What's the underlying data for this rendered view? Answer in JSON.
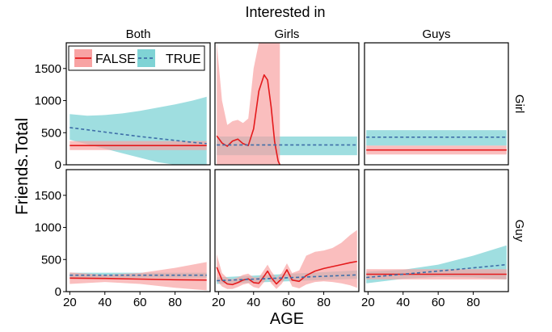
{
  "chart_data": {
    "type": "line",
    "title": "Interested in",
    "xlabel": "AGE",
    "ylabel": "Friends.Total",
    "col_facets": [
      "Both",
      "Girls",
      "Guys"
    ],
    "row_facets": [
      "Girl",
      "Guy"
    ],
    "xlim": [
      18,
      100
    ],
    "ylim": [
      0,
      1900
    ],
    "x_ticks": [
      20,
      40,
      60,
      80
    ],
    "y_ticks": [
      0,
      500,
      1000,
      1500
    ],
    "legend": {
      "placement": "top-left",
      "entries": [
        {
          "label": "FALSE",
          "color": "#E41A1C",
          "fill": "#F8A3A3",
          "dash": "solid"
        },
        {
          "label": "TRUE",
          "color": "#3E6EA8",
          "fill": "#7FD3D5",
          "dash": "dashed"
        }
      ]
    },
    "colors": {
      "false_line": "#E41A1C",
      "false_band": "#F8A3A3",
      "true_line": "#3E6EA8",
      "true_band": "#7FD3D5"
    },
    "panels": [
      {
        "row": "Girl",
        "col": "Both",
        "series": [
          {
            "name": "FALSE",
            "x": [
              20,
              98
            ],
            "y": [
              300,
              300
            ],
            "lo": [
              230,
              230
            ],
            "hi": [
              370,
              370
            ]
          },
          {
            "name": "TRUE",
            "x": [
              20,
              30,
              40,
              50,
              60,
              70,
              80,
              90,
              98
            ],
            "y": [
              580,
              545,
              510,
              475,
              440,
              410,
              380,
              350,
              330
            ],
            "lo": [
              390,
              320,
              250,
              180,
              110,
              40,
              0,
              0,
              0
            ],
            "hi": [
              790,
              765,
              775,
              800,
              840,
              890,
              940,
              1000,
              1060
            ]
          }
        ]
      },
      {
        "row": "Girl",
        "col": "Girls",
        "series": [
          {
            "name": "FALSE",
            "x": [
              19,
              22,
              25,
              28,
              31,
              34,
              37,
              40,
              43,
              46,
              48,
              50,
              52,
              54,
              55
            ],
            "y": [
              450,
              340,
              290,
              370,
              400,
              330,
              300,
              560,
              1150,
              1400,
              1320,
              900,
              360,
              60,
              0
            ],
            "lo": [
              0,
              0,
              0,
              0,
              0,
              0,
              0,
              0,
              0,
              0,
              0,
              0,
              0,
              0,
              0
            ],
            "hi": [
              1900,
              1000,
              620,
              680,
              700,
              650,
              720,
              1500,
              1900,
              1900,
              1900,
              1900,
              1900,
              1900,
              1900
            ]
          },
          {
            "name": "TRUE",
            "x": [
              19,
              99
            ],
            "y": [
              310,
              310
            ],
            "lo": [
              150,
              150
            ],
            "hi": [
              440,
              440
            ]
          }
        ]
      },
      {
        "row": "Girl",
        "col": "Guys",
        "series": [
          {
            "name": "FALSE",
            "x": [
              19,
              99
            ],
            "y": [
              230,
              230
            ],
            "lo": [
              160,
              160
            ],
            "hi": [
              300,
              300
            ]
          },
          {
            "name": "TRUE",
            "x": [
              19,
              99
            ],
            "y": [
              430,
              430
            ],
            "lo": [
              300,
              300
            ],
            "hi": [
              540,
              540
            ]
          }
        ]
      },
      {
        "row": "Guy",
        "col": "Both",
        "series": [
          {
            "name": "FALSE",
            "x": [
              20,
              40,
              60,
              80,
              98
            ],
            "y": [
              210,
              205,
              195,
              185,
              180
            ],
            "lo": [
              120,
              150,
              120,
              60,
              20
            ],
            "hi": [
              300,
              260,
              290,
              370,
              460
            ]
          },
          {
            "name": "TRUE",
            "x": [
              20,
              98
            ],
            "y": [
              255,
              255
            ],
            "lo": [
              215,
              215
            ],
            "hi": [
              295,
              295
            ]
          }
        ]
      },
      {
        "row": "Guy",
        "col": "Girls",
        "series": [
          {
            "name": "FALSE",
            "x": [
              19,
              22,
              25,
              28,
              31,
              34,
              37,
              40,
              43,
              46,
              48,
              50,
              53,
              56,
              59,
              62,
              66,
              70,
              75,
              80,
              85,
              90,
              95,
              99
            ],
            "y": [
              380,
              180,
              120,
              110,
              140,
              180,
              200,
              140,
              130,
              240,
              320,
              220,
              120,
              200,
              340,
              180,
              160,
              250,
              320,
              360,
              390,
              420,
              450,
              470
            ],
            "lo": [
              170,
              80,
              40,
              40,
              70,
              110,
              130,
              70,
              50,
              150,
              220,
              130,
              40,
              120,
              250,
              80,
              50,
              110,
              150,
              160,
              150,
              130,
              100,
              60
            ],
            "hi": [
              580,
              290,
              210,
              190,
              220,
              260,
              280,
              220,
              220,
              340,
              420,
              320,
              210,
              290,
              440,
              290,
              330,
              560,
              620,
              640,
              680,
              760,
              880,
              960
            ]
          },
          {
            "name": "TRUE",
            "x": [
              19,
              99
            ],
            "y": [
              170,
              260
            ],
            "lo": [
              120,
              200
            ],
            "hi": [
              220,
              330
            ]
          }
        ]
      },
      {
        "row": "Guy",
        "col": "Guys",
        "series": [
          {
            "name": "FALSE",
            "x": [
              19,
              99
            ],
            "y": [
              270,
              270
            ],
            "lo": [
              190,
              190
            ],
            "hi": [
              350,
              350
            ]
          },
          {
            "name": "TRUE",
            "x": [
              19,
              40,
              60,
              80,
              99
            ],
            "y": [
              220,
              270,
              320,
              370,
              420
            ],
            "lo": [
              130,
              200,
              230,
              220,
              190
            ],
            "hi": [
              310,
              340,
              420,
              560,
              720
            ]
          }
        ]
      }
    ]
  }
}
